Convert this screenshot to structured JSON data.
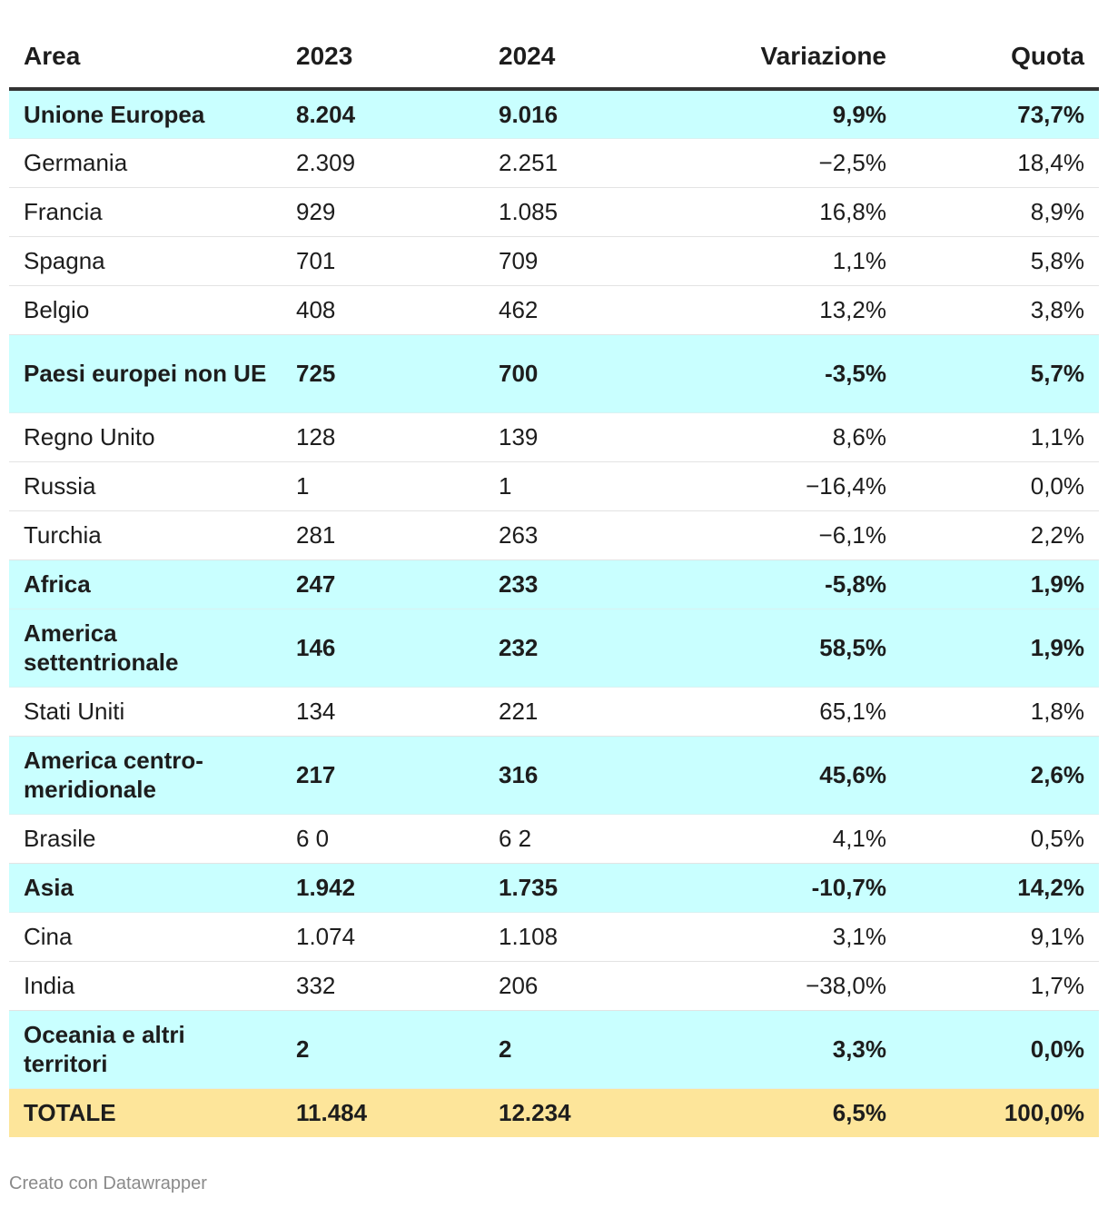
{
  "chart_data": {
    "type": "table",
    "columns": [
      "Area",
      "2023",
      "2024",
      "Variazione",
      "Quota"
    ],
    "rows": [
      {
        "cells": [
          "Unione Europea",
          "8.204",
          "9.016",
          "9,9%",
          "73,7%"
        ],
        "kind": "group"
      },
      {
        "cells": [
          "Germania",
          "2.309",
          "2.251",
          "−2,5%",
          "18,4%"
        ],
        "kind": "item"
      },
      {
        "cells": [
          "Francia",
          "929",
          "1.085",
          "16,8%",
          "8,9%"
        ],
        "kind": "item"
      },
      {
        "cells": [
          "Spagna",
          "701",
          "709",
          "1,1%",
          "5,8%"
        ],
        "kind": "item"
      },
      {
        "cells": [
          "Belgio",
          "408",
          "462",
          "13,2%",
          "3,8%"
        ],
        "kind": "item"
      },
      {
        "cells": [
          "Paesi europei non UE",
          "725",
          "700",
          "-3,5%",
          "5,7%"
        ],
        "kind": "group"
      },
      {
        "cells": [
          "Regno Unito",
          "128",
          "139",
          "8,6%",
          "1,1%"
        ],
        "kind": "item"
      },
      {
        "cells": [
          "Russia",
          "1",
          "1",
          "−16,4%",
          "0,0%"
        ],
        "kind": "item"
      },
      {
        "cells": [
          "Turchia",
          "281",
          "263",
          "−6,1%",
          "2,2%"
        ],
        "kind": "item"
      },
      {
        "cells": [
          "Africa",
          "247",
          "233",
          "-5,8%",
          "1,9%"
        ],
        "kind": "group"
      },
      {
        "cells": [
          "America settentrionale",
          "146",
          "232",
          "58,5%",
          "1,9%"
        ],
        "kind": "group"
      },
      {
        "cells": [
          "Stati Uniti",
          "134",
          "221",
          "65,1%",
          "1,8%"
        ],
        "kind": "item"
      },
      {
        "cells": [
          "America centro-meridionale",
          "217",
          "316",
          "45,6%",
          "2,6%"
        ],
        "kind": "group"
      },
      {
        "cells": [
          "Brasile",
          "6 0",
          "6 2",
          "4,1%",
          "0,5%"
        ],
        "kind": "item"
      },
      {
        "cells": [
          "Asia",
          "1.942",
          "1.735",
          "-10,7%",
          "14,2%"
        ],
        "kind": "group"
      },
      {
        "cells": [
          "Cina",
          "1.074",
          "1.108",
          "3,1%",
          "9,1%"
        ],
        "kind": "item"
      },
      {
        "cells": [
          "India",
          "332",
          "206",
          "−38,0%",
          "1,7%"
        ],
        "kind": "item"
      },
      {
        "cells": [
          "Oceania e altri territori",
          "2",
          "2",
          "3,3%",
          "0,0%"
        ],
        "kind": "group"
      },
      {
        "cells": [
          "TOTALE",
          "11.484",
          "12.234",
          "6,5%",
          "100,0%"
        ],
        "kind": "total"
      }
    ]
  },
  "footer": {
    "credit": "Creato con Datawrapper"
  },
  "colors": {
    "group_row": "#c9ffff",
    "total_row": "#fde59a",
    "header_rule": "#333333"
  }
}
